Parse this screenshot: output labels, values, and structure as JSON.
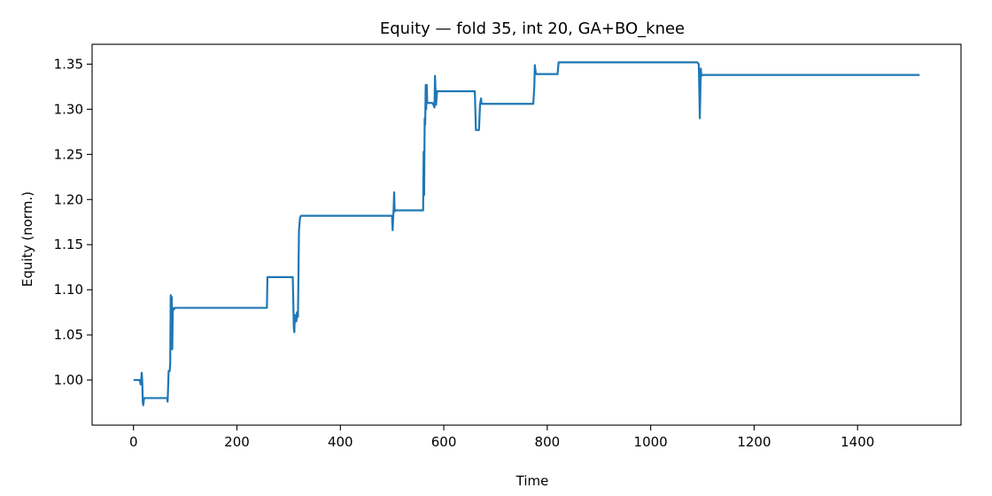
{
  "chart_data": {
    "type": "line",
    "title": "Equity — fold 35, int 20, GA+BO_knee",
    "xlabel": "Time",
    "ylabel": "Equity (norm.)",
    "xlim": [
      -80,
      1600
    ],
    "ylim": [
      0.95,
      1.372
    ],
    "xticks": [
      0,
      200,
      400,
      600,
      800,
      1000,
      1200,
      1400
    ],
    "yticks": [
      1.0,
      1.05,
      1.1,
      1.15,
      1.2,
      1.25,
      1.3,
      1.35
    ],
    "ytick_labels": [
      "1.00",
      "1.05",
      "1.10",
      "1.15",
      "1.20",
      "1.25",
      "1.30",
      "1.35"
    ],
    "grid": false,
    "legend": "none",
    "series": [
      {
        "color": "#1f77b4",
        "x": [
          0,
          12,
          14,
          16,
          17,
          18,
          19,
          20,
          21,
          22,
          65,
          66,
          68,
          70,
          71,
          72,
          73,
          74,
          75,
          76,
          78,
          80,
          258,
          259,
          260,
          308,
          310,
          311,
          312,
          313,
          314,
          315,
          316,
          318,
          320,
          322,
          324,
          500,
          501,
          503,
          504,
          505,
          507,
          510,
          560,
          561,
          562,
          563,
          564,
          565,
          566,
          567,
          568,
          570,
          578,
          580,
          582,
          583,
          585,
          587,
          590,
          610,
          660,
          662,
          668,
          670,
          672,
          673,
          680,
          773,
          775,
          776,
          778,
          780,
          820,
          822,
          825,
          1090,
          1093,
          1095,
          1097,
          1098,
          1100,
          1520
        ],
        "y": [
          1.0,
          1.0,
          0.995,
          1.008,
          0.998,
          0.975,
          0.972,
          0.978,
          0.98,
          0.98,
          0.98,
          0.976,
          1.01,
          1.01,
          1.018,
          1.094,
          1.04,
          1.092,
          1.034,
          1.08,
          1.078,
          1.08,
          1.08,
          1.114,
          1.114,
          1.114,
          1.058,
          1.053,
          1.072,
          1.065,
          1.072,
          1.065,
          1.075,
          1.07,
          1.166,
          1.18,
          1.182,
          1.182,
          1.166,
          1.19,
          1.208,
          1.187,
          1.188,
          1.188,
          1.188,
          1.253,
          1.205,
          1.29,
          1.283,
          1.327,
          1.3,
          1.327,
          1.307,
          1.307,
          1.307,
          1.305,
          1.302,
          1.337,
          1.305,
          1.32,
          1.32,
          1.32,
          1.32,
          1.277,
          1.277,
          1.305,
          1.312,
          1.306,
          1.306,
          1.306,
          1.325,
          1.349,
          1.339,
          1.339,
          1.339,
          1.352,
          1.352,
          1.352,
          1.35,
          1.29,
          1.345,
          1.337,
          1.338,
          1.338
        ]
      }
    ]
  }
}
